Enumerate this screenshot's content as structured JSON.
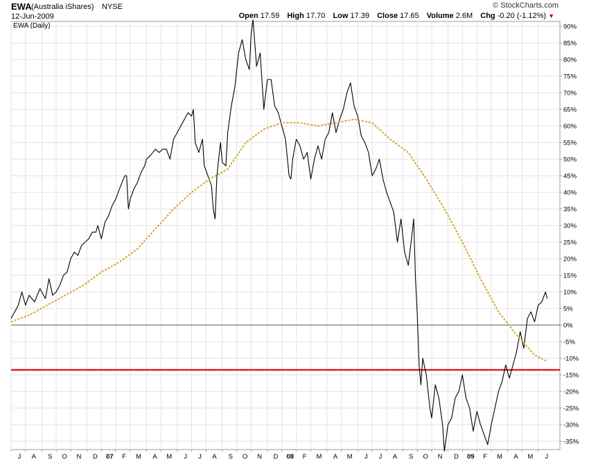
{
  "header": {
    "symbol": "EWA",
    "name": "(Australia iShares)",
    "exchange": "NYSE",
    "date": "12-Jun-2009",
    "brand": "© StockCharts.com",
    "open_label": "Open",
    "open": "17.59",
    "high_label": "High",
    "high": "17.70",
    "low_label": "Low",
    "low": "17.39",
    "close_label": "Close",
    "close": "17.65",
    "volume_label": "Volume",
    "volume": "2.6M",
    "chg_label": "Chg",
    "chg": "-0.20 (-1.12%)"
  },
  "colors": {
    "price_line": "#000000",
    "moving_average": "#d4a62a",
    "support_line": "#e00000",
    "zero_line": "#555555",
    "grid": "#e2e2e2"
  },
  "chart_data": {
    "type": "line",
    "title": "EWA (Daily)",
    "ylabel": "",
    "xlabel": "",
    "ylim": [
      -37.5,
      91.5
    ],
    "y_ticks": [
      90,
      85,
      80,
      75,
      70,
      65,
      60,
      55,
      50,
      45,
      40,
      35,
      30,
      25,
      20,
      15,
      10,
      5,
      0,
      -5,
      -10,
      -15,
      -20,
      -25,
      -30,
      -35
    ],
    "y_tick_labels": [
      "90%",
      "85%",
      "80%",
      "75%",
      "70%",
      "65%",
      "60%",
      "55%",
      "50%",
      "45%",
      "40%",
      "35%",
      "30%",
      "25%",
      "20%",
      "15%",
      "10%",
      "5%",
      "0%",
      "-5%",
      "-10%",
      "-15%",
      "-20%",
      "-25%",
      "-30%",
      "-35%"
    ],
    "x_range": [
      0,
      3.04
    ],
    "x_ticks": [
      {
        "label": "J",
        "t": 0.0
      },
      {
        "label": "A",
        "t": 0.08
      },
      {
        "label": "S",
        "t": 0.17
      },
      {
        "label": "O",
        "t": 0.25
      },
      {
        "label": "N",
        "t": 0.33
      },
      {
        "label": "D",
        "t": 0.42
      },
      {
        "label": "07",
        "t": 0.5,
        "bold": true
      },
      {
        "label": "F",
        "t": 0.58
      },
      {
        "label": "M",
        "t": 0.66
      },
      {
        "label": "A",
        "t": 0.75
      },
      {
        "label": "M",
        "t": 0.83
      },
      {
        "label": "J",
        "t": 0.92
      },
      {
        "label": "J",
        "t": 1.0
      },
      {
        "label": "A",
        "t": 1.08
      },
      {
        "label": "S",
        "t": 1.17
      },
      {
        "label": "O",
        "t": 1.25
      },
      {
        "label": "N",
        "t": 1.33
      },
      {
        "label": "D",
        "t": 1.42
      },
      {
        "label": "08",
        "t": 1.5,
        "bold": true
      },
      {
        "label": "F",
        "t": 1.58
      },
      {
        "label": "M",
        "t": 1.66
      },
      {
        "label": "A",
        "t": 1.75
      },
      {
        "label": "M",
        "t": 1.83
      },
      {
        "label": "J",
        "t": 1.92
      },
      {
        "label": "J",
        "t": 2.0
      },
      {
        "label": "A",
        "t": 2.08
      },
      {
        "label": "S",
        "t": 2.17
      },
      {
        "label": "O",
        "t": 2.25
      },
      {
        "label": "N",
        "t": 2.33
      },
      {
        "label": "D",
        "t": 2.42
      },
      {
        "label": "09",
        "t": 2.5,
        "bold": true
      },
      {
        "label": "F",
        "t": 2.58
      },
      {
        "label": "M",
        "t": 2.66
      },
      {
        "label": "A",
        "t": 2.75
      },
      {
        "label": "M",
        "t": 2.83
      },
      {
        "label": "J",
        "t": 2.92
      }
    ],
    "series": [
      {
        "style": "price",
        "points": [
          [
            0.0,
            2
          ],
          [
            0.02,
            4
          ],
          [
            0.04,
            6
          ],
          [
            0.06,
            10
          ],
          [
            0.08,
            6
          ],
          [
            0.1,
            9
          ],
          [
            0.13,
            7
          ],
          [
            0.16,
            11
          ],
          [
            0.19,
            8
          ],
          [
            0.21,
            14
          ],
          [
            0.23,
            9
          ],
          [
            0.25,
            10
          ],
          [
            0.27,
            12
          ],
          [
            0.29,
            15
          ],
          [
            0.31,
            16
          ],
          [
            0.33,
            20
          ],
          [
            0.35,
            22
          ],
          [
            0.37,
            21
          ],
          [
            0.39,
            24
          ],
          [
            0.41,
            25
          ],
          [
            0.43,
            26
          ],
          [
            0.45,
            28
          ],
          [
            0.47,
            28
          ],
          [
            0.48,
            30
          ],
          [
            0.5,
            26
          ],
          [
            0.52,
            31
          ],
          [
            0.54,
            33
          ],
          [
            0.56,
            36
          ],
          [
            0.58,
            38
          ],
          [
            0.6,
            41
          ],
          [
            0.63,
            45
          ],
          [
            0.64,
            45
          ],
          [
            0.65,
            35
          ],
          [
            0.66,
            38
          ],
          [
            0.68,
            41
          ],
          [
            0.7,
            43
          ],
          [
            0.72,
            46
          ],
          [
            0.74,
            48
          ],
          [
            0.75,
            50
          ],
          [
            0.77,
            51
          ],
          [
            0.8,
            53
          ],
          [
            0.82,
            52
          ],
          [
            0.84,
            53
          ],
          [
            0.86,
            53
          ],
          [
            0.88,
            50
          ],
          [
            0.9,
            56
          ],
          [
            0.92,
            58
          ],
          [
            0.94,
            60
          ],
          [
            0.96,
            62
          ],
          [
            0.98,
            64
          ],
          [
            1.0,
            63
          ],
          [
            1.01,
            65
          ],
          [
            1.02,
            55
          ],
          [
            1.04,
            52
          ],
          [
            1.06,
            56
          ],
          [
            1.07,
            48
          ],
          [
            1.09,
            45
          ],
          [
            1.11,
            42
          ],
          [
            1.12,
            35
          ],
          [
            1.13,
            32
          ],
          [
            1.14,
            45
          ],
          [
            1.16,
            55
          ],
          [
            1.17,
            49
          ],
          [
            1.19,
            48
          ],
          [
            1.2,
            58
          ],
          [
            1.22,
            66
          ],
          [
            1.24,
            72
          ],
          [
            1.26,
            82
          ],
          [
            1.28,
            86
          ],
          [
            1.3,
            80
          ],
          [
            1.32,
            77
          ],
          [
            1.33,
            88
          ],
          [
            1.34,
            92
          ],
          [
            1.36,
            78
          ],
          [
            1.38,
            82
          ],
          [
            1.4,
            65
          ],
          [
            1.42,
            74
          ],
          [
            1.44,
            74
          ],
          [
            1.46,
            66
          ],
          [
            1.48,
            64
          ],
          [
            1.5,
            60
          ],
          [
            1.52,
            56
          ],
          [
            1.54,
            45
          ],
          [
            1.55,
            44
          ],
          [
            1.56,
            50
          ],
          [
            1.58,
            56
          ],
          [
            1.6,
            54
          ],
          [
            1.62,
            50
          ],
          [
            1.64,
            52
          ],
          [
            1.66,
            44
          ],
          [
            1.68,
            50
          ],
          [
            1.7,
            54
          ],
          [
            1.72,
            50
          ],
          [
            1.74,
            56
          ],
          [
            1.76,
            58
          ],
          [
            1.78,
            64
          ],
          [
            1.8,
            58
          ],
          [
            1.82,
            62
          ],
          [
            1.84,
            65
          ],
          [
            1.86,
            70
          ],
          [
            1.88,
            73
          ],
          [
            1.9,
            66
          ],
          [
            1.92,
            63
          ],
          [
            1.94,
            57
          ],
          [
            1.96,
            55
          ],
          [
            1.98,
            52
          ],
          [
            2.0,
            45
          ],
          [
            2.02,
            47
          ],
          [
            2.04,
            50
          ],
          [
            2.06,
            44
          ],
          [
            2.08,
            40
          ],
          [
            2.1,
            37
          ],
          [
            2.12,
            34
          ],
          [
            2.14,
            25
          ],
          [
            2.16,
            32
          ],
          [
            2.18,
            22
          ],
          [
            2.2,
            18
          ],
          [
            2.22,
            27
          ],
          [
            2.23,
            32
          ],
          [
            2.24,
            14
          ],
          [
            2.25,
            3
          ],
          [
            2.26,
            -12
          ],
          [
            2.27,
            -18
          ],
          [
            2.28,
            -10
          ],
          [
            2.3,
            -15
          ],
          [
            2.32,
            -25
          ],
          [
            2.33,
            -28
          ],
          [
            2.35,
            -18
          ],
          [
            2.37,
            -22
          ],
          [
            2.39,
            -30
          ],
          [
            2.4,
            -38
          ],
          [
            2.42,
            -30
          ],
          [
            2.44,
            -28
          ],
          [
            2.46,
            -22
          ],
          [
            2.48,
            -20
          ],
          [
            2.5,
            -15
          ],
          [
            2.52,
            -22
          ],
          [
            2.54,
            -25
          ],
          [
            2.56,
            -32
          ],
          [
            2.58,
            -26
          ],
          [
            2.6,
            -30
          ],
          [
            2.62,
            -33
          ],
          [
            2.64,
            -36
          ],
          [
            2.66,
            -30
          ],
          [
            2.68,
            -25
          ],
          [
            2.7,
            -20
          ],
          [
            2.72,
            -17
          ],
          [
            2.74,
            -12
          ],
          [
            2.76,
            -16
          ],
          [
            2.78,
            -12
          ],
          [
            2.8,
            -8
          ],
          [
            2.82,
            -2
          ],
          [
            2.84,
            -7
          ],
          [
            2.86,
            2
          ],
          [
            2.88,
            4
          ],
          [
            2.9,
            1
          ],
          [
            2.92,
            6
          ],
          [
            2.94,
            7
          ],
          [
            2.96,
            10
          ],
          [
            2.97,
            8
          ]
        ]
      },
      {
        "style": "moving-average",
        "points": [
          [
            0.0,
            1
          ],
          [
            0.1,
            3
          ],
          [
            0.2,
            6
          ],
          [
            0.3,
            9
          ],
          [
            0.4,
            12
          ],
          [
            0.5,
            16
          ],
          [
            0.6,
            19
          ],
          [
            0.7,
            23
          ],
          [
            0.8,
            29
          ],
          [
            0.9,
            35
          ],
          [
            1.0,
            40
          ],
          [
            1.1,
            44
          ],
          [
            1.2,
            47
          ],
          [
            1.3,
            55
          ],
          [
            1.4,
            59
          ],
          [
            1.5,
            61
          ],
          [
            1.6,
            61
          ],
          [
            1.7,
            60
          ],
          [
            1.8,
            61
          ],
          [
            1.9,
            62
          ],
          [
            2.0,
            61
          ],
          [
            2.1,
            56
          ],
          [
            2.2,
            52
          ],
          [
            2.3,
            44
          ],
          [
            2.4,
            35
          ],
          [
            2.5,
            25
          ],
          [
            2.6,
            14
          ],
          [
            2.7,
            4
          ],
          [
            2.8,
            -3
          ],
          [
            2.9,
            -9
          ],
          [
            2.97,
            -11
          ]
        ]
      }
    ],
    "reference_lines": [
      {
        "y": 0,
        "style": "zero"
      },
      {
        "y": -13.5,
        "style": "support"
      }
    ]
  }
}
